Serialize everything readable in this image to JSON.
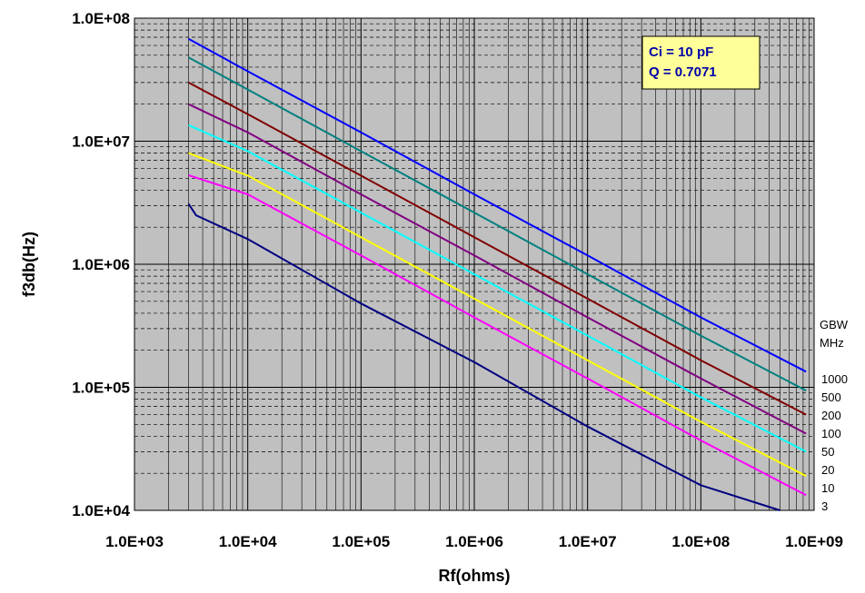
{
  "chart_data": {
    "type": "line",
    "xlabel": "Rf(ohms)",
    "ylabel": "f3db(Hz)",
    "x_scale": "log",
    "y_scale": "log",
    "xlim": [
      1000,
      1000000000
    ],
    "ylim": [
      10000,
      100000000
    ],
    "x_ticks": [
      "1.0E+03",
      "1.0E+04",
      "1.0E+05",
      "1.0E+06",
      "1.0E+07",
      "1.0E+08",
      "1.0E+09"
    ],
    "y_ticks": [
      "1.0E+04",
      "1.0E+05",
      "1.0E+06",
      "1.0E+07",
      "1.0E+08"
    ],
    "grid": true,
    "annotation": {
      "line1": "Ci = 10 pF",
      "line2": "Q = 0.7071"
    },
    "legend_title": [
      "GBW",
      "MHz"
    ],
    "series": [
      {
        "name": "1000",
        "color": "#0000ff",
        "x": [
          3000,
          10000,
          100000,
          1000000,
          10000000,
          100000000,
          850000000
        ],
        "y": [
          68000000,
          37000000,
          11800000,
          3700000,
          1180000,
          370000,
          134000
        ]
      },
      {
        "name": "500",
        "color": "#008080",
        "x": [
          3000,
          10000,
          100000,
          1000000,
          10000000,
          100000000,
          850000000
        ],
        "y": [
          48000000,
          26300000,
          8300000,
          2630000,
          830000,
          263000,
          94000
        ]
      },
      {
        "name": "200",
        "color": "#800000",
        "x": [
          3000,
          10000,
          100000,
          1000000,
          10000000,
          100000000,
          850000000
        ],
        "y": [
          30000000,
          16600000,
          5250000,
          1660000,
          525000,
          166000,
          60000
        ]
      },
      {
        "name": "100",
        "color": "#800080",
        "x": [
          3000,
          10000,
          100000,
          1000000,
          10000000,
          100000000,
          850000000
        ],
        "y": [
          20000000,
          11800000,
          3700000,
          1180000,
          370000,
          118000,
          42000
        ]
      },
      {
        "name": "50",
        "color": "#00ffff",
        "x": [
          3000,
          10000,
          100000,
          1000000,
          10000000,
          100000000,
          850000000
        ],
        "y": [
          13500000,
          8300000,
          2630000,
          830000,
          263000,
          83000,
          30000
        ]
      },
      {
        "name": "20",
        "color": "#ffff00",
        "x": [
          3000,
          10000,
          100000,
          1000000,
          10000000,
          100000000,
          850000000
        ],
        "y": [
          8000000,
          5250000,
          1660000,
          525000,
          166000,
          52500,
          19000
        ]
      },
      {
        "name": "10",
        "color": "#ff00ff",
        "x": [
          3000,
          10000,
          100000,
          1000000,
          10000000,
          100000000,
          850000000
        ],
        "y": [
          5300000,
          3700000,
          1180000,
          370000,
          118000,
          37000,
          13300
        ]
      },
      {
        "name": "3",
        "color": "#000080",
        "x": [
          3000,
          3500,
          10000,
          100000,
          1000000,
          10000000,
          100000000,
          500000000
        ],
        "y": [
          3100000,
          2500000,
          1600000,
          480000,
          160000,
          48000,
          16000,
          10000
        ]
      }
    ]
  }
}
